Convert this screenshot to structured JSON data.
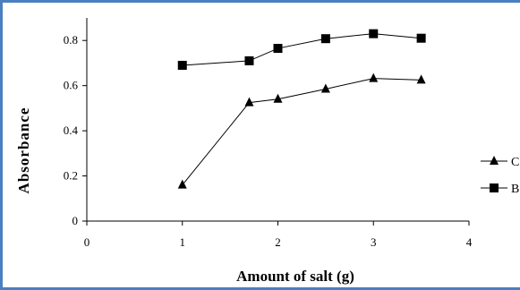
{
  "chart_data": {
    "type": "line",
    "title": "",
    "xlabel": "Amount of salt (g)",
    "ylabel": "Absorbance",
    "xlim": [
      0,
      4
    ],
    "ylim": [
      0,
      0.9
    ],
    "xticks": [
      0,
      1,
      2,
      3,
      4
    ],
    "yticks": [
      0,
      0.2,
      0.4,
      0.6,
      0.8
    ],
    "xtick_labels": [
      "0",
      "1",
      "2",
      "3",
      "4"
    ],
    "ytick_labels": [
      "0",
      "0.2",
      "0.4",
      "0.6",
      "0.8"
    ],
    "grid": false,
    "legend_position": "right",
    "series": [
      {
        "name": "C",
        "marker": "triangle",
        "color": "#000000",
        "x": [
          1,
          1.7,
          2,
          2.5,
          3,
          3.5
        ],
        "y": [
          0.16,
          0.525,
          0.54,
          0.585,
          0.632,
          0.625
        ]
      },
      {
        "name": "B",
        "marker": "square",
        "color": "#000000",
        "x": [
          1,
          1.7,
          2,
          2.5,
          3,
          3.5
        ],
        "y": [
          0.69,
          0.71,
          0.765,
          0.808,
          0.83,
          0.81
        ]
      }
    ]
  }
}
